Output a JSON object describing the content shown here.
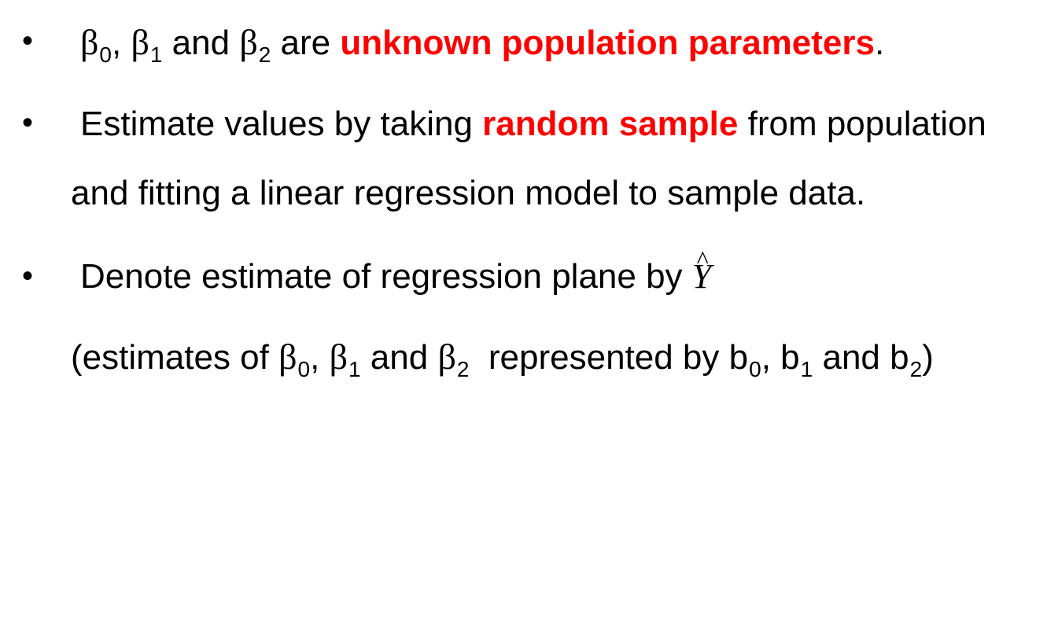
{
  "colors": {
    "text": "#000000",
    "emphasis": "#ff0000"
  },
  "bullets": {
    "glyph": "•"
  },
  "line1": {
    "beta": "β",
    "s0": "0",
    "s1": "1",
    "s2": "2",
    "comma": ",",
    "and": "and",
    "are": "are",
    "highlight": "unknown population parameters",
    "period": "."
  },
  "line2": {
    "pre": "Estimate values by taking",
    "highlight": "random sample",
    "post": "from population"
  },
  "line3": {
    "text": "and fitting a linear regression model to sample data."
  },
  "line4": {
    "text": "Denote estimate of regression plane by",
    "symbol": "Y",
    "hat": "^"
  },
  "line5": {
    "open": "(estimates of",
    "beta": "β",
    "s0": "0",
    "s1": "1",
    "s2": "2",
    "comma": ",",
    "and": "and",
    "represented": "represented by",
    "b": "b",
    "close": ")"
  }
}
